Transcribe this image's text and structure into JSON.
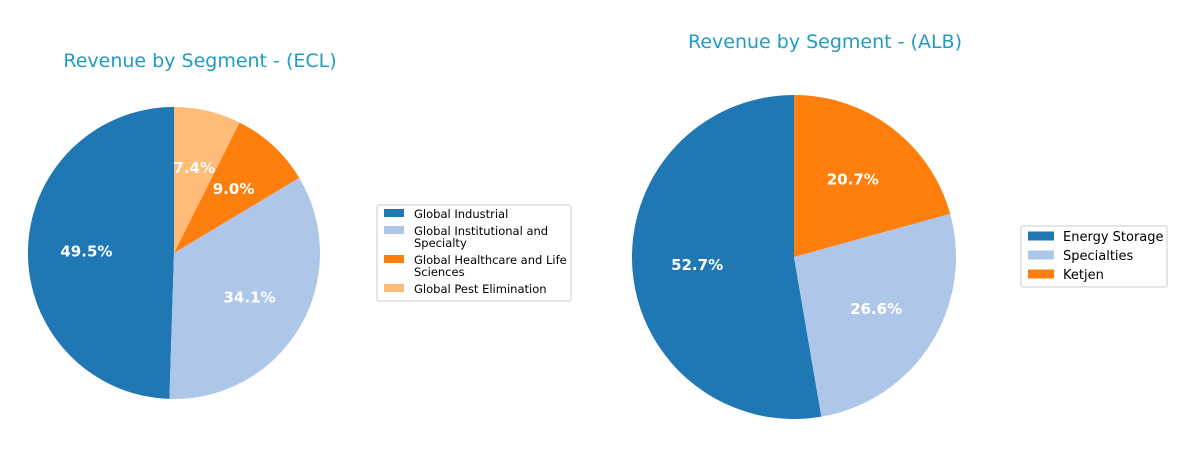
{
  "chart_data": [
    {
      "type": "pie",
      "title": "Revenue by Segment - (ECL)",
      "categories": [
        "Global Industrial",
        "Global Institutional and Specialty",
        "Global Healthcare and Life Sciences",
        "Global Pest Elimination"
      ],
      "legend_lines": [
        [
          "Global Industrial"
        ],
        [
          "Global Institutional and",
          "Specialty"
        ],
        [
          "Global Healthcare and Life",
          "Sciences"
        ],
        [
          "Global Pest Elimination"
        ]
      ],
      "values": [
        49.5,
        34.1,
        9.0,
        7.4
      ],
      "labels": [
        "49.5%",
        "34.1%",
        "9.0%",
        "7.4%"
      ],
      "colors": [
        "#1f77b4",
        "#aec7e8",
        "#ff7f0e",
        "#ffbb78"
      ],
      "start_angle": 90,
      "direction": "counterclockwise",
      "legend_position": "right"
    },
    {
      "type": "pie",
      "title": "Revenue by Segment - (ALB)",
      "categories": [
        "Energy Storage",
        "Specialties",
        "Ketjen"
      ],
      "legend_lines": [
        [
          "Energy Storage"
        ],
        [
          "Specialties"
        ],
        [
          "Ketjen"
        ]
      ],
      "values": [
        52.7,
        26.6,
        20.7
      ],
      "labels": [
        "52.7%",
        "26.6%",
        "20.7%"
      ],
      "colors": [
        "#1f77b4",
        "#aec7e8",
        "#ff7f0e"
      ],
      "start_angle": 90,
      "direction": "counterclockwise",
      "legend_position": "right"
    }
  ]
}
